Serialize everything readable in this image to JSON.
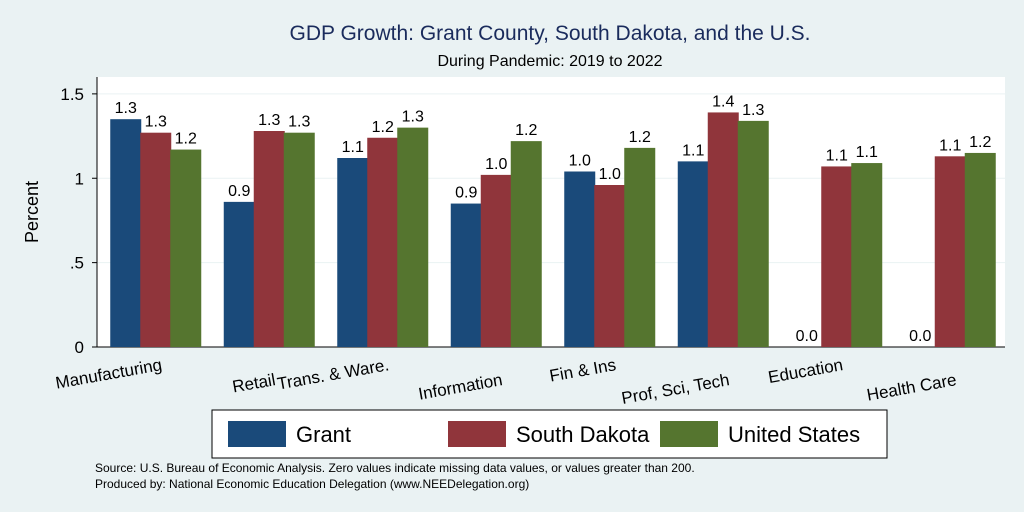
{
  "chart_data": {
    "type": "bar",
    "title": "GDP Growth: Grant County, South Dakota, and the U.S.",
    "subtitle": "During Pandemic: 2019 to 2022",
    "ylabel": "Percent",
    "xlabel": "",
    "ylim": [
      0,
      1.6
    ],
    "yticks": [
      {
        "value": 0,
        "label": "0"
      },
      {
        "value": 0.5,
        "label": ".5"
      },
      {
        "value": 1,
        "label": "1"
      },
      {
        "value": 1.5,
        "label": "1.5"
      }
    ],
    "grid": true,
    "legend_position": "bottom",
    "categories": [
      "Manufacturing",
      "Retail",
      "Trans. & Ware.",
      "Information",
      "Fin & Ins",
      "Prof, Sci, Tech",
      "Education",
      "Health Care"
    ],
    "series": [
      {
        "name": "Grant",
        "color": "#1a4a7a",
        "values": [
          1.35,
          0.86,
          1.12,
          0.85,
          1.04,
          1.1,
          0.0,
          0.0
        ],
        "labels": [
          "1.3",
          "0.9",
          "1.1",
          "0.9",
          "1.0",
          "1.1",
          "0.0",
          "0.0"
        ]
      },
      {
        "name": "South Dakota",
        "color": "#90353b",
        "values": [
          1.27,
          1.28,
          1.24,
          1.02,
          0.96,
          1.39,
          1.07,
          1.13
        ],
        "labels": [
          "1.3",
          "1.3",
          "1.2",
          "1.0",
          "1.0",
          "1.4",
          "1.1",
          "1.1"
        ]
      },
      {
        "name": "United States",
        "color": "#55752f",
        "values": [
          1.17,
          1.27,
          1.3,
          1.22,
          1.18,
          1.34,
          1.09,
          1.15
        ],
        "labels": [
          "1.2",
          "1.3",
          "1.3",
          "1.2",
          "1.2",
          "1.3",
          "1.1",
          "1.2"
        ]
      }
    ]
  },
  "footer": {
    "source": "Source: U.S. Bureau of Economic Analysis. Zero values indicate missing data values, or values greater than 200.",
    "producer": "Produced by: National Economic Education Delegation (www.NEEDelegation.org)"
  }
}
